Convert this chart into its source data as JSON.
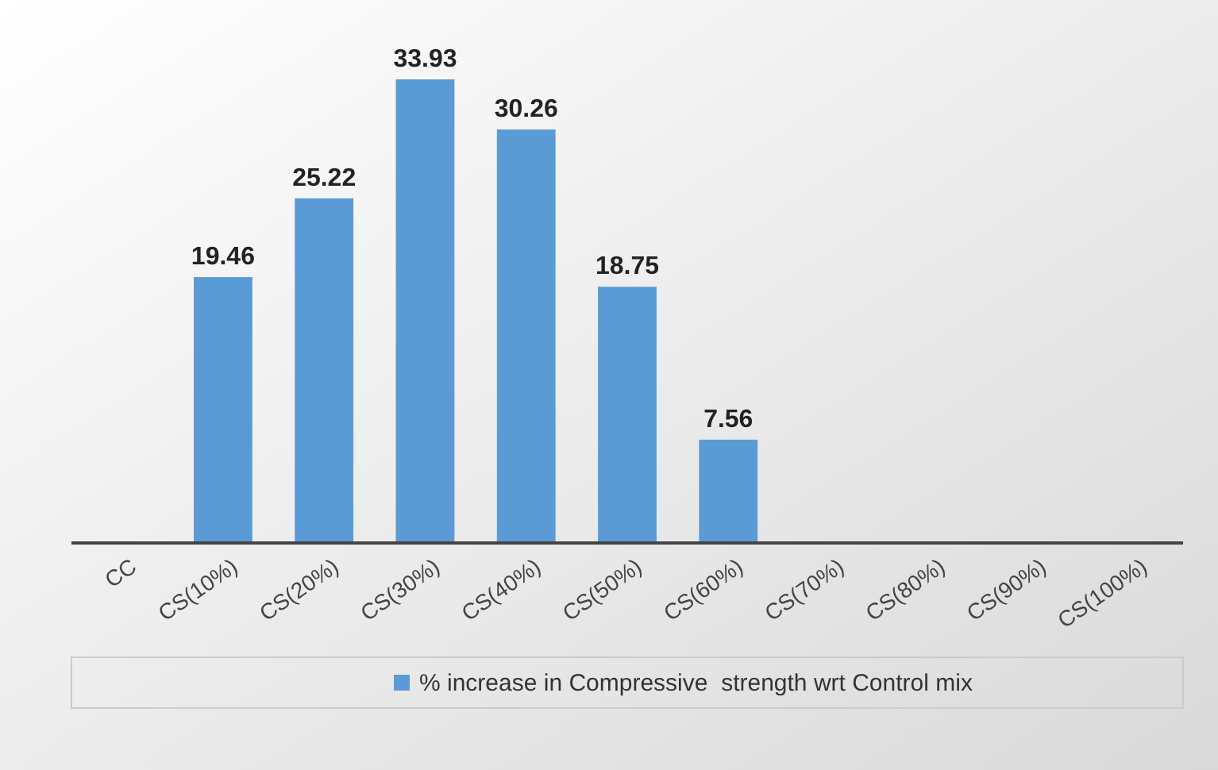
{
  "chart_data": {
    "type": "bar",
    "categories": [
      "CC",
      "CS(10%)",
      "CS(20%)",
      "CS(30%)",
      "CS(40%)",
      "CS(50%)",
      "CS(60%)",
      "CS(70%)",
      "CS(80%)",
      "CS(90%)",
      "CS(100%)"
    ],
    "series": [
      {
        "name": "% increase in Compressive  strength wrt Control mix",
        "color": "#5b9bd5",
        "values": [
          null,
          19.46,
          25.22,
          33.93,
          30.26,
          18.75,
          7.56,
          null,
          null,
          null,
          null
        ]
      }
    ],
    "data_labels": true,
    "legend": "bottom",
    "grid": false
  }
}
